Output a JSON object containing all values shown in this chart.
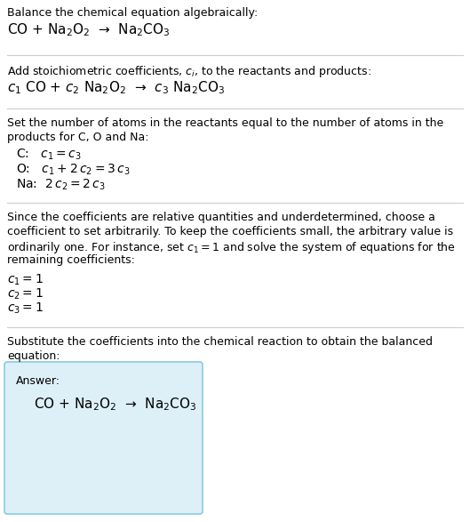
{
  "section1_line1": "Balance the chemical equation algebraically:",
  "section1_line2": "CO + Na$_2$O$_2$  →  Na$_2$CO$_3$",
  "section2_line1": "Add stoichiometric coefficients, $c_i$, to the reactants and products:",
  "section2_line2": "$c_1$ CO + $c_2$ Na$_2$O$_2$  →  $c_3$ Na$_2$CO$_3$",
  "section3_line1": "Set the number of atoms in the reactants equal to the number of atoms in the",
  "section3_line2": "products for C, O and Na:",
  "section3_C": "C:   $c_1 = c_3$",
  "section3_O": "O:   $c_1 + 2\\,c_2 = 3\\,c_3$",
  "section3_Na": "Na:  $2\\,c_2 = 2\\,c_3$",
  "section4_line1": "Since the coefficients are relative quantities and underdetermined, choose a",
  "section4_line2": "coefficient to set arbitrarily. To keep the coefficients small, the arbitrary value is",
  "section4_line3": "ordinarily one. For instance, set $c_1 = 1$ and solve the system of equations for the",
  "section4_line4": "remaining coefficients:",
  "section4_c1": "$c_1 = 1$",
  "section4_c2": "$c_2 = 1$",
  "section4_c3": "$c_3 = 1$",
  "section5_line1": "Substitute the coefficients into the chemical reaction to obtain the balanced",
  "section5_line2": "equation:",
  "answer_label": "Answer:",
  "answer_math": "CO + Na$_2$O$_2$  →  Na$_2$CO$_3$",
  "bg_color": "#ffffff",
  "box_facecolor": "#ddf0f8",
  "box_edgecolor": "#88ccdd",
  "line_color": "#cccccc",
  "text_color": "#000000",
  "fs_body": 9.0,
  "fs_math": 10.0,
  "fs_math_large": 11.0
}
